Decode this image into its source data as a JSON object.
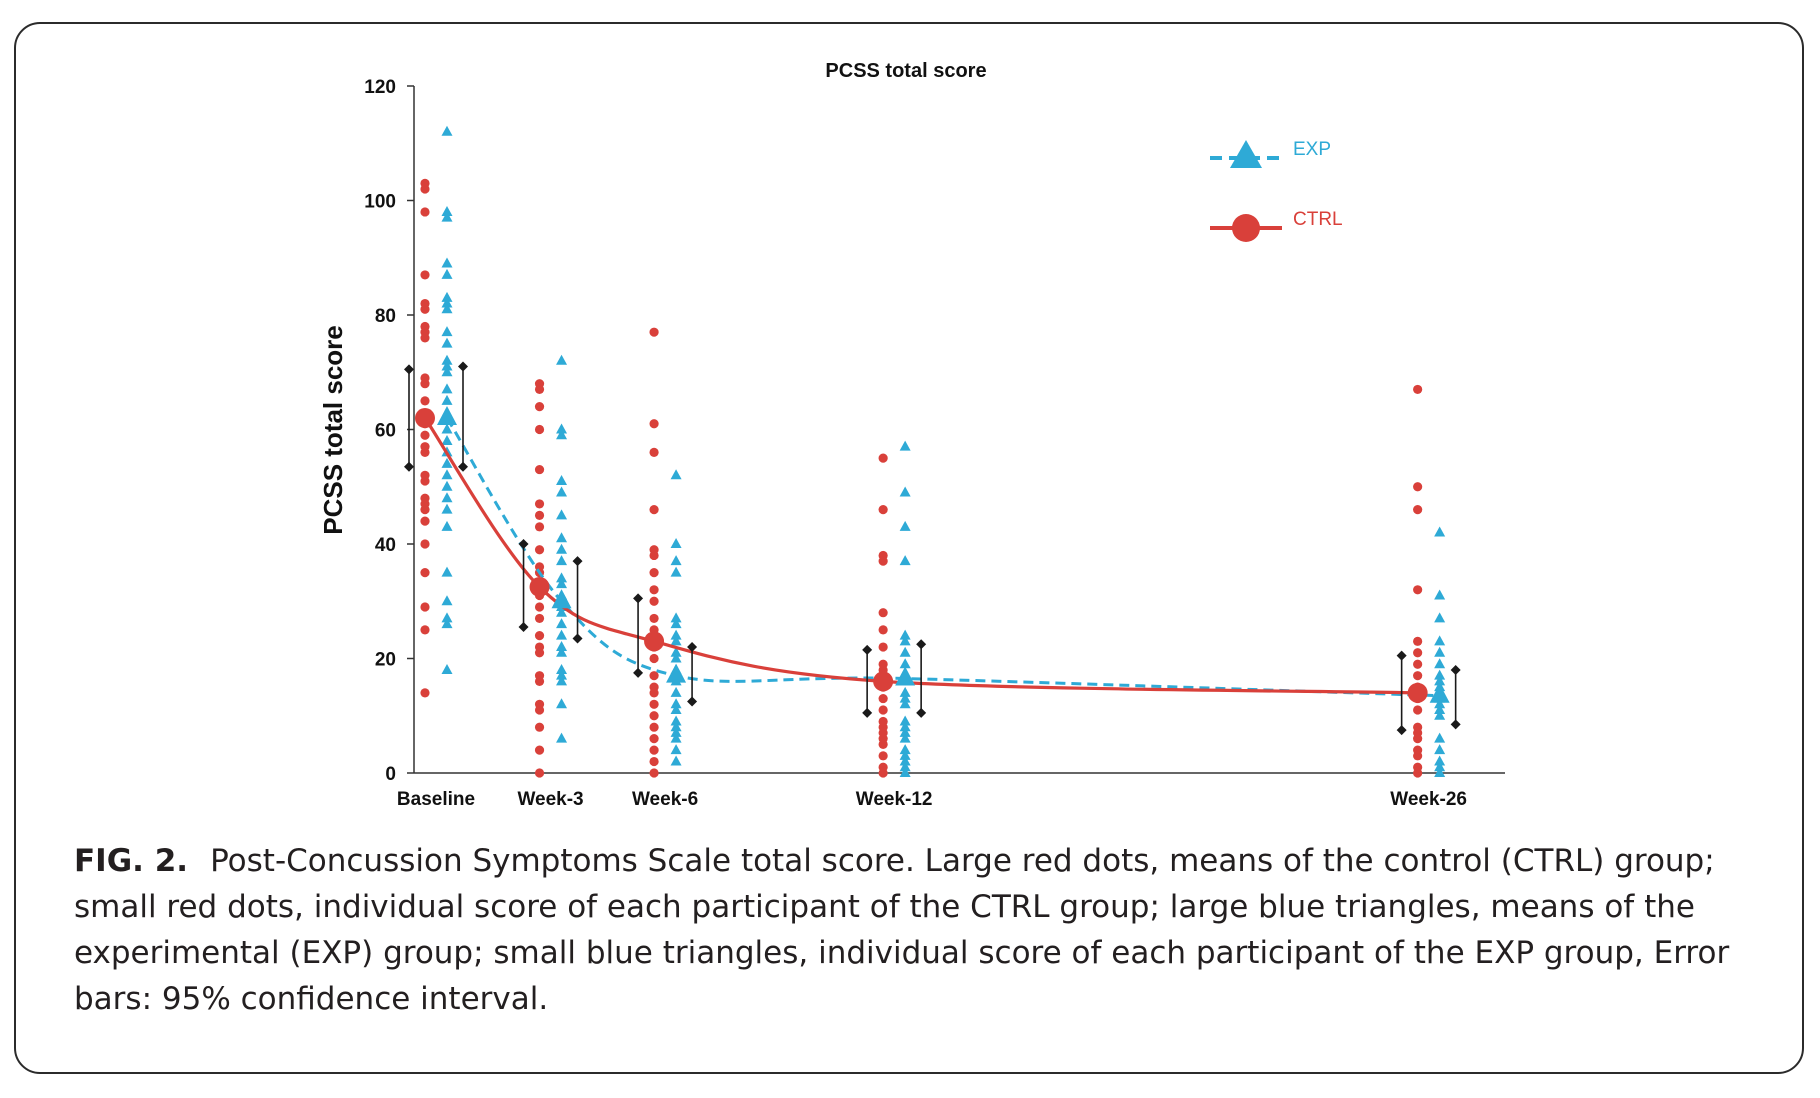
{
  "figure_label": "FIG. 2.",
  "caption": "Post-Concussion Symptoms Scale total score. Large red dots, means of the control (CTRL) group; small red dots, individual score of each participant of the CTRL group; large blue triangles, means of the experimental (EXP) group; small blue triangles, individual score of each participant of the EXP group, Error bars: 95% confidence interval.",
  "colors": {
    "exp": "#2eaad6",
    "ctrl": "#d9403a",
    "error_bar": "#1a1a1a"
  },
  "chart_data": {
    "type": "scatter",
    "title": "PCSS total score",
    "ylabel": "PCSS total score",
    "xlabel": "",
    "ylim": [
      0,
      120
    ],
    "yticks": [
      0,
      20,
      40,
      60,
      80,
      100,
      120
    ],
    "categories": [
      "Baseline",
      "Week-3",
      "Week-6",
      "Week-12",
      "Week-26"
    ],
    "weeks": [
      0,
      3,
      6,
      12,
      26
    ],
    "grid": false,
    "legend_position": "top-right",
    "series": [
      {
        "name": "EXP",
        "style": "dashed line, triangles",
        "means": [
          62,
          30,
          17,
          16.5,
          13.5
        ],
        "ci_low": [
          53.5,
          23.5,
          12.5,
          10.5,
          8.5
        ],
        "ci_high": [
          71,
          37,
          22,
          22.5,
          18
        ],
        "individual": [
          [
            112,
            98,
            97,
            89,
            87,
            83,
            82,
            81,
            77,
            75,
            72,
            71,
            70,
            67,
            65,
            62,
            60,
            58,
            56,
            54,
            52,
            50,
            48,
            46,
            43,
            35,
            30,
            27,
            26,
            18
          ],
          [
            72,
            60,
            59,
            51,
            49,
            45,
            41,
            39,
            37,
            34,
            33,
            31,
            29,
            28,
            26,
            24,
            22,
            21,
            18,
            17,
            16,
            12,
            6
          ],
          [
            52,
            40,
            37,
            35,
            27,
            26,
            24,
            23,
            21,
            20,
            18,
            17,
            16,
            14,
            12,
            11,
            9,
            8,
            7,
            6,
            4,
            2
          ],
          [
            57,
            49,
            43,
            37,
            24,
            23,
            21,
            19,
            17,
            16,
            14,
            13,
            12,
            9,
            8,
            7,
            6,
            4,
            3,
            2,
            1,
            0
          ],
          [
            42,
            31,
            27,
            23,
            21,
            19,
            17,
            16,
            15,
            14,
            13,
            12,
            11,
            10,
            6,
            4,
            2,
            1,
            0
          ]
        ]
      },
      {
        "name": "CTRL",
        "style": "solid line, circles",
        "means": [
          62,
          32.5,
          23,
          16,
          14
        ],
        "ci_low": [
          53.5,
          25.5,
          17.5,
          10.5,
          7.5
        ],
        "ci_high": [
          70.5,
          40,
          30.5,
          21.5,
          20.5
        ],
        "individual": [
          [
            103,
            102,
            98,
            87,
            82,
            81,
            78,
            77,
            76,
            69,
            68,
            65,
            62,
            61,
            59,
            57,
            56,
            52,
            51,
            48,
            47,
            46,
            44,
            40,
            35,
            29,
            25,
            14
          ],
          [
            68,
            67,
            64,
            60,
            53,
            47,
            45,
            43,
            39,
            36,
            35,
            33,
            31,
            29,
            27,
            24,
            22,
            21,
            17,
            16,
            12,
            11,
            8,
            4,
            0
          ],
          [
            77,
            61,
            56,
            46,
            39,
            38,
            35,
            32,
            30,
            27,
            25,
            23,
            22,
            20,
            17,
            15,
            14,
            12,
            10,
            8,
            6,
            4,
            2,
            0
          ],
          [
            55,
            46,
            38,
            37,
            28,
            25,
            22,
            19,
            18,
            15,
            13,
            11,
            9,
            8,
            7,
            6,
            5,
            3,
            1,
            0
          ],
          [
            67,
            50,
            46,
            32,
            23,
            21,
            19,
            17,
            15,
            13,
            11,
            8,
            7,
            6,
            4,
            3,
            1,
            0
          ]
        ]
      }
    ]
  }
}
